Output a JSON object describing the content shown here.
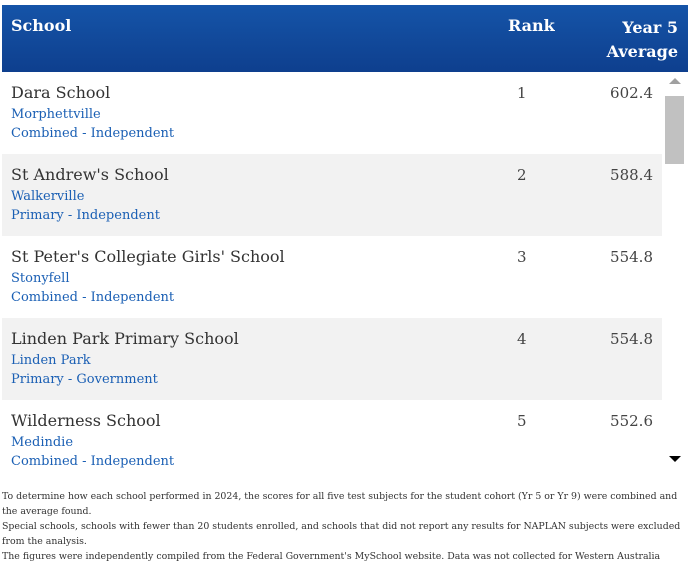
{
  "header": {
    "school_label": "School",
    "rank_label": "Rank",
    "avg_line1": "Year 5",
    "avg_line2": "Average"
  },
  "rows": [
    {
      "name": "Dara School",
      "suburb": "Morphettville",
      "type": "Combined - Independent",
      "rank": "1",
      "average": "602.4"
    },
    {
      "name": "St Andrew's School",
      "suburb": "Walkerville",
      "type": "Primary - Independent",
      "rank": "2",
      "average": "588.4"
    },
    {
      "name": "St Peter's Collegiate Girls' School",
      "suburb": "Stonyfell",
      "type": "Combined - Independent",
      "rank": "3",
      "average": "554.8"
    },
    {
      "name": "Linden Park Primary School",
      "suburb": "Linden Park",
      "type": "Primary - Government",
      "rank": "4",
      "average": "554.8"
    },
    {
      "name": "Wilderness School",
      "suburb": "Medindie",
      "type": "Combined - Independent",
      "rank": "5",
      "average": "552.6"
    }
  ],
  "footnote": {
    "line1": "To determine how each school performed in 2024, the scores for all five test subjects for the student cohort (Yr 5 or Yr 9) were combined and the average found.",
    "line2": "Special schools, schools with fewer than 20 students enrolled, and schools that did not report any results for NAPLAN subjects were excluded from the analysis.",
    "line3": "The figures were independently compiled from the Federal Government's MySchool website. Data was not collected for Western Australia"
  },
  "colors": {
    "header_bg": "#1554a8",
    "link_blue": "#1a5fb4",
    "row_alt": "#f2f2f2"
  },
  "icons": {
    "scroll_up": "triangle-up",
    "scroll_down": "triangle-down"
  }
}
